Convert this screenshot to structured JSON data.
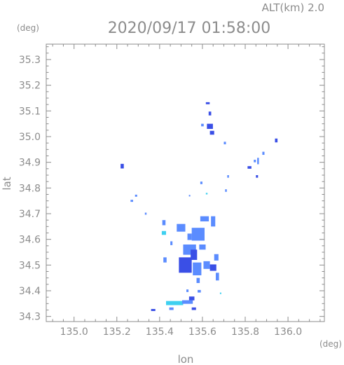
{
  "header": {
    "altitude_label": "ALT(km) 2.0",
    "datetime": "2020/09/17 01:58:00"
  },
  "chart_data": {
    "type": "heatmap",
    "title": "2020/09/17 01:58:00",
    "subtitle": "ALT(km) 2.0",
    "xlabel": "lon",
    "ylabel": "lat",
    "x_unit": "(deg)",
    "y_unit": "(deg)",
    "xlim": [
      134.87,
      136.17
    ],
    "ylim": [
      34.28,
      35.36
    ],
    "xticks": [
      135.0,
      135.2,
      135.4,
      135.6,
      135.8,
      136.0
    ],
    "xtick_labels": [
      "135.0",
      "135.2",
      "135.4",
      "135.6",
      "135.8",
      "136.0"
    ],
    "yticks": [
      34.3,
      34.4,
      34.5,
      34.6,
      34.7,
      34.8,
      34.9,
      35.0,
      35.1,
      35.2,
      35.3
    ],
    "ytick_labels": [
      "34.3",
      "34.4",
      "34.5",
      "34.6",
      "34.7",
      "34.8",
      "34.9",
      "35.0",
      "35.1",
      "35.2",
      "35.3"
    ],
    "minor_ticks_per_major": 4,
    "colors": {
      "weak": "#5b8cff",
      "strong": "#3a4fe6",
      "light": "#3ed0f0",
      "axis": "#8c8c8c"
    },
    "cells": [
      {
        "lon": 135.625,
        "lat": 35.13,
        "w": 0.018,
        "h": 0.008,
        "level": "strong"
      },
      {
        "lon": 135.635,
        "lat": 35.09,
        "w": 0.012,
        "h": 0.015,
        "level": "strong"
      },
      {
        "lon": 135.6,
        "lat": 35.045,
        "w": 0.012,
        "h": 0.01,
        "level": "weak"
      },
      {
        "lon": 135.635,
        "lat": 35.04,
        "w": 0.028,
        "h": 0.02,
        "level": "strong"
      },
      {
        "lon": 135.645,
        "lat": 35.015,
        "w": 0.02,
        "h": 0.015,
        "level": "strong"
      },
      {
        "lon": 135.705,
        "lat": 34.975,
        "w": 0.01,
        "h": 0.01,
        "level": "weak"
      },
      {
        "lon": 135.945,
        "lat": 34.985,
        "w": 0.012,
        "h": 0.015,
        "level": "strong"
      },
      {
        "lon": 135.885,
        "lat": 34.935,
        "w": 0.01,
        "h": 0.012,
        "level": "weak"
      },
      {
        "lon": 135.86,
        "lat": 34.905,
        "w": 0.008,
        "h": 0.025,
        "level": "weak"
      },
      {
        "lon": 135.82,
        "lat": 34.88,
        "w": 0.018,
        "h": 0.01,
        "level": "strong"
      },
      {
        "lon": 135.845,
        "lat": 34.905,
        "w": 0.01,
        "h": 0.01,
        "level": "weak"
      },
      {
        "lon": 135.855,
        "lat": 34.845,
        "w": 0.01,
        "h": 0.01,
        "level": "strong"
      },
      {
        "lon": 135.225,
        "lat": 34.885,
        "w": 0.015,
        "h": 0.018,
        "level": "strong"
      },
      {
        "lon": 135.72,
        "lat": 34.845,
        "w": 0.008,
        "h": 0.01,
        "level": "weak"
      },
      {
        "lon": 135.595,
        "lat": 34.82,
        "w": 0.01,
        "h": 0.01,
        "level": "weak"
      },
      {
        "lon": 135.71,
        "lat": 34.79,
        "w": 0.008,
        "h": 0.01,
        "level": "weak"
      },
      {
        "lon": 135.62,
        "lat": 34.778,
        "w": 0.008,
        "h": 0.006,
        "level": "light"
      },
      {
        "lon": 135.54,
        "lat": 34.77,
        "w": 0.006,
        "h": 0.006,
        "level": "weak"
      },
      {
        "lon": 135.29,
        "lat": 34.77,
        "w": 0.01,
        "h": 0.008,
        "level": "weak"
      },
      {
        "lon": 135.27,
        "lat": 34.75,
        "w": 0.012,
        "h": 0.008,
        "level": "weak"
      },
      {
        "lon": 135.335,
        "lat": 34.7,
        "w": 0.008,
        "h": 0.008,
        "level": "weak"
      },
      {
        "lon": 135.61,
        "lat": 34.68,
        "w": 0.04,
        "h": 0.02,
        "level": "weak"
      },
      {
        "lon": 135.65,
        "lat": 34.67,
        "w": 0.02,
        "h": 0.04,
        "level": "weak"
      },
      {
        "lon": 135.42,
        "lat": 34.665,
        "w": 0.015,
        "h": 0.02,
        "level": "weak"
      },
      {
        "lon": 135.42,
        "lat": 34.625,
        "w": 0.02,
        "h": 0.015,
        "level": "light"
      },
      {
        "lon": 135.5,
        "lat": 34.645,
        "w": 0.04,
        "h": 0.03,
        "level": "weak"
      },
      {
        "lon": 135.54,
        "lat": 34.61,
        "w": 0.02,
        "h": 0.025,
        "level": "weak"
      },
      {
        "lon": 135.58,
        "lat": 34.62,
        "w": 0.06,
        "h": 0.05,
        "level": "weak"
      },
      {
        "lon": 135.54,
        "lat": 34.56,
        "w": 0.06,
        "h": 0.04,
        "level": "weak"
      },
      {
        "lon": 135.6,
        "lat": 34.57,
        "w": 0.03,
        "h": 0.02,
        "level": "weak"
      },
      {
        "lon": 135.455,
        "lat": 34.585,
        "w": 0.01,
        "h": 0.015,
        "level": "weak"
      },
      {
        "lon": 135.56,
        "lat": 34.54,
        "w": 0.03,
        "h": 0.04,
        "level": "strong"
      },
      {
        "lon": 135.52,
        "lat": 34.5,
        "w": 0.06,
        "h": 0.06,
        "level": "strong"
      },
      {
        "lon": 135.575,
        "lat": 34.485,
        "w": 0.04,
        "h": 0.05,
        "level": "weak"
      },
      {
        "lon": 135.62,
        "lat": 34.5,
        "w": 0.03,
        "h": 0.03,
        "level": "weak"
      },
      {
        "lon": 135.665,
        "lat": 34.53,
        "w": 0.02,
        "h": 0.025,
        "level": "weak"
      },
      {
        "lon": 135.65,
        "lat": 34.49,
        "w": 0.03,
        "h": 0.025,
        "level": "strong"
      },
      {
        "lon": 135.58,
        "lat": 34.44,
        "w": 0.015,
        "h": 0.02,
        "level": "weak"
      },
      {
        "lon": 135.67,
        "lat": 34.455,
        "w": 0.015,
        "h": 0.03,
        "level": "weak"
      },
      {
        "lon": 135.425,
        "lat": 34.52,
        "w": 0.015,
        "h": 0.02,
        "level": "weak"
      },
      {
        "lon": 135.53,
        "lat": 34.4,
        "w": 0.01,
        "h": 0.01,
        "level": "weak"
      },
      {
        "lon": 135.585,
        "lat": 34.398,
        "w": 0.015,
        "h": 0.01,
        "level": "weak"
      },
      {
        "lon": 135.685,
        "lat": 34.39,
        "w": 0.006,
        "h": 0.006,
        "level": "light"
      },
      {
        "lon": 135.55,
        "lat": 34.37,
        "w": 0.025,
        "h": 0.015,
        "level": "strong"
      },
      {
        "lon": 135.47,
        "lat": 34.352,
        "w": 0.08,
        "h": 0.016,
        "level": "light"
      },
      {
        "lon": 135.53,
        "lat": 34.356,
        "w": 0.05,
        "h": 0.014,
        "level": "weak"
      },
      {
        "lon": 135.37,
        "lat": 34.325,
        "w": 0.02,
        "h": 0.008,
        "level": "strong"
      },
      {
        "lon": 135.455,
        "lat": 34.33,
        "w": 0.02,
        "h": 0.01,
        "level": "weak"
      },
      {
        "lon": 135.56,
        "lat": 34.33,
        "w": 0.02,
        "h": 0.01,
        "level": "strong"
      }
    ]
  }
}
